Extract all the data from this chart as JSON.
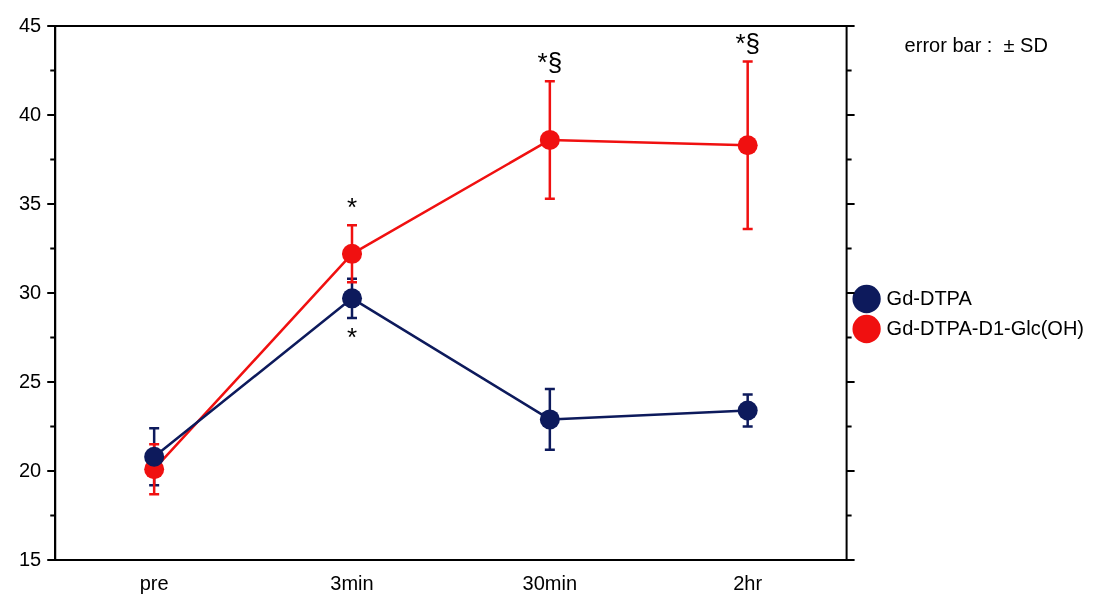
{
  "chart_data": {
    "type": "line",
    "categories": [
      "pre",
      "3min",
      "30min",
      "2hr"
    ],
    "series": [
      {
        "name": "Gd-DTPA",
        "color": "#0d1a5c",
        "values": [
          20.8,
          29.7,
          22.9,
          23.4
        ],
        "errors": [
          1.6,
          1.1,
          1.7,
          0.9
        ]
      },
      {
        "name": "Gd-DTPA-D1-Glc(OH)",
        "color": "#f01010",
        "values": [
          20.1,
          32.2,
          38.6,
          38.3
        ],
        "errors": [
          1.4,
          1.6,
          3.3,
          4.7
        ]
      }
    ],
    "ylim": [
      15,
      45
    ],
    "yticks": [
      15,
      20,
      25,
      30,
      35,
      40,
      45
    ],
    "grid": false,
    "legend": "right",
    "marker": "circle",
    "line_style": "solid",
    "annotations": [
      {
        "text": "*",
        "x": "3min",
        "y": 33.8
      },
      {
        "text": "*",
        "x": "3min",
        "y": 28.6
      },
      {
        "text": "*§",
        "x": "30min",
        "y": 41.9
      },
      {
        "text": "*§",
        "x": "2hr",
        "y": 43.0
      },
      "error bar :  ± SD"
    ]
  }
}
